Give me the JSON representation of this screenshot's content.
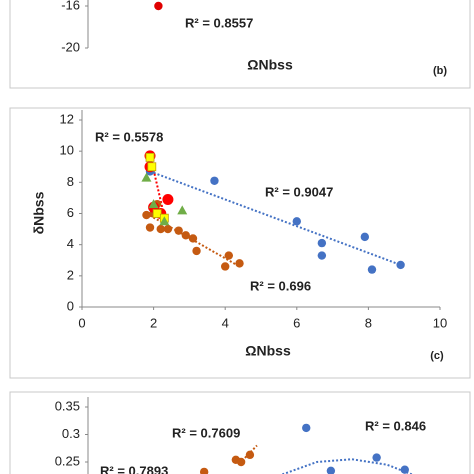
{
  "chart_data": [
    {
      "type": "scatter",
      "xlabel": "ΩNbss",
      "panel": "(b)",
      "xlim": [
        0,
        10
      ],
      "ylim": [
        -20,
        -16
      ],
      "yticks": [
        -20,
        -16
      ],
      "series": [
        {
          "name": "red",
          "color": "#e00000",
          "marker": "circle",
          "x": [
            2.0
          ],
          "values": [
            -16
          ]
        }
      ],
      "annotations": [
        {
          "text": "R² = 0.8557",
          "color": "#c00000"
        }
      ]
    },
    {
      "type": "scatter",
      "xlabel": "ΩNbss",
      "ylabel": "δNbss",
      "panel": "(c)",
      "xlim": [
        0,
        10
      ],
      "ylim": [
        0,
        12
      ],
      "xticks": [
        0,
        2,
        4,
        6,
        8,
        10
      ],
      "yticks": [
        0,
        2,
        4,
        6,
        8,
        10,
        12
      ],
      "series": [
        {
          "name": "blue",
          "color": "#4472c4",
          "marker": "circle",
          "x": [
            3.7,
            6.0,
            6.7,
            6.7,
            7.9,
            8.1,
            8.9,
            1.9
          ],
          "values": [
            8.1,
            5.5,
            4.1,
            3.3,
            4.5,
            2.4,
            2.7,
            8.7
          ],
          "trendline": {
            "x": [
              1.9,
              8.9
            ],
            "values": [
              8.7,
              2.7
            ]
          }
        },
        {
          "name": "brown",
          "color": "#c55a11",
          "marker": "circle",
          "x": [
            1.8,
            1.9,
            2.2,
            2.4,
            2.7,
            2.9,
            3.1,
            3.2,
            4.0,
            4.1,
            4.4,
            2.0,
            2.1
          ],
          "values": [
            5.9,
            5.1,
            5.0,
            5.0,
            4.9,
            4.6,
            4.4,
            3.6,
            2.6,
            3.3,
            2.8,
            6.0,
            6.6
          ],
          "trendline": {
            "x": [
              1.8,
              4.4
            ],
            "values": [
              6.0,
              2.6
            ]
          }
        },
        {
          "name": "red",
          "color": "#ff0000",
          "marker": "circle",
          "x": [
            1.9,
            1.9,
            2.4,
            2.2,
            2.0
          ],
          "values": [
            9.7,
            9.0,
            6.9,
            6.0,
            6.4
          ],
          "trendline": {
            "x": [
              1.9,
              2.3
            ],
            "values": [
              9.8,
              5.8
            ]
          }
        },
        {
          "name": "yellow",
          "color": "#ffff00",
          "marker": "square",
          "x": [
            1.9,
            1.95,
            2.1,
            2.3
          ],
          "values": [
            9.6,
            9.0,
            6.0,
            5.7
          ]
        },
        {
          "name": "green",
          "color": "#70ad47",
          "marker": "triangle",
          "x": [
            1.8,
            2.0,
            2.8,
            2.3
          ],
          "values": [
            8.3,
            6.6,
            6.2,
            5.5
          ]
        }
      ],
      "annotations": [
        {
          "text": "R² = 0.5578",
          "color": "#e00000"
        },
        {
          "text": "R² = 0.9047",
          "color": "#2e75b6"
        },
        {
          "text": "R² = 0.696",
          "color": "#c55a11"
        }
      ]
    },
    {
      "type": "scatter",
      "xlim": [
        0,
        10
      ],
      "ylim": [
        0.2,
        0.35
      ],
      "yticks": [
        0.25,
        {
          "value": 0.3,
          "label": "0.3"
        },
        0.35
      ],
      "series": [
        {
          "name": "blue",
          "color": "#4472c4",
          "marker": "circle",
          "x": [
            6.2,
            6.9,
            8.2,
            9.0
          ],
          "values": [
            0.312,
            0.234,
            0.258,
            0.236
          ],
          "trendline": {
            "x": [
              5.2,
              6.5,
              7.5,
              8.5,
              9.3
            ],
            "values": [
              0.22,
              0.25,
              0.255,
              0.245,
              0.225
            ]
          }
        },
        {
          "name": "brown",
          "color": "#c55a11",
          "marker": "circle",
          "x": [
            3.3,
            4.2,
            4.35,
            4.6
          ],
          "values": [
            0.232,
            0.254,
            0.25,
            0.263
          ],
          "trendline": {
            "x": [
              4.3,
              4.8
            ],
            "values": [
              0.247,
              0.28
            ]
          }
        }
      ],
      "annotations": [
        {
          "text": "R² = 0.7609",
          "color": "#c55a11"
        },
        {
          "text": "R² = 0.846",
          "color": "#2e75b6"
        },
        {
          "text": "R² = 0.7893",
          "color": "#e00000"
        }
      ]
    }
  ]
}
